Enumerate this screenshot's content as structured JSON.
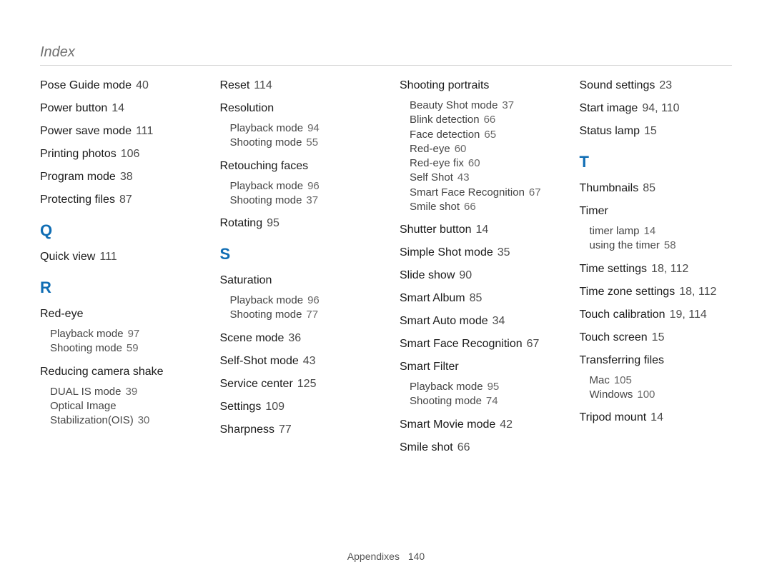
{
  "header": {
    "title": "Index"
  },
  "footer": {
    "section": "Appendixes",
    "page": "140"
  },
  "colors": {
    "accent": "#0f6db4",
    "text": "#221f20",
    "muted": "#707070"
  },
  "columns": [
    {
      "items": [
        {
          "type": "entry",
          "label": "Pose Guide mode",
          "pages": "40"
        },
        {
          "type": "entry",
          "label": "Power button",
          "pages": "14"
        },
        {
          "type": "entry",
          "label": "Power save mode",
          "pages": "111"
        },
        {
          "type": "entry",
          "label": "Printing photos",
          "pages": "106"
        },
        {
          "type": "entry",
          "label": "Program mode",
          "pages": "38"
        },
        {
          "type": "entry",
          "label": "Protecting files",
          "pages": "87"
        },
        {
          "type": "letter",
          "label": "Q"
        },
        {
          "type": "entry",
          "label": "Quick view",
          "pages": "111"
        },
        {
          "type": "letter",
          "label": "R"
        },
        {
          "type": "entry",
          "label": "Red-eye",
          "pages": ""
        },
        {
          "type": "sub",
          "label": "Playback mode",
          "pages": "97"
        },
        {
          "type": "sub",
          "label": "Shooting mode",
          "pages": "59",
          "last": true
        },
        {
          "type": "entry",
          "label": "Reducing camera shake",
          "pages": ""
        },
        {
          "type": "sub",
          "label": "DUAL IS mode",
          "pages": "39"
        },
        {
          "type": "sub",
          "label": "Optical Image Stabilization(OIS)",
          "pages": "30",
          "last": true
        }
      ]
    },
    {
      "items": [
        {
          "type": "entry",
          "label": "Reset",
          "pages": "114"
        },
        {
          "type": "entry",
          "label": "Resolution",
          "pages": ""
        },
        {
          "type": "sub",
          "label": "Playback mode",
          "pages": "94"
        },
        {
          "type": "sub",
          "label": "Shooting mode",
          "pages": "55",
          "last": true
        },
        {
          "type": "entry",
          "label": "Retouching faces",
          "pages": ""
        },
        {
          "type": "sub",
          "label": "Playback mode",
          "pages": "96"
        },
        {
          "type": "sub",
          "label": "Shooting mode",
          "pages": "37",
          "last": true
        },
        {
          "type": "entry",
          "label": "Rotating",
          "pages": "95"
        },
        {
          "type": "letter",
          "label": "S"
        },
        {
          "type": "entry",
          "label": "Saturation",
          "pages": ""
        },
        {
          "type": "sub",
          "label": "Playback mode",
          "pages": "96"
        },
        {
          "type": "sub",
          "label": "Shooting mode",
          "pages": "77",
          "last": true
        },
        {
          "type": "entry",
          "label": "Scene mode",
          "pages": "36"
        },
        {
          "type": "entry",
          "label": "Self-Shot mode",
          "pages": "43"
        },
        {
          "type": "entry",
          "label": "Service center",
          "pages": "125"
        },
        {
          "type": "entry",
          "label": "Settings",
          "pages": "109"
        },
        {
          "type": "entry",
          "label": "Sharpness",
          "pages": "77"
        }
      ]
    },
    {
      "items": [
        {
          "type": "entry",
          "label": "Shooting portraits",
          "pages": ""
        },
        {
          "type": "sub",
          "label": "Beauty Shot mode",
          "pages": "37"
        },
        {
          "type": "sub",
          "label": "Blink detection",
          "pages": "66"
        },
        {
          "type": "sub",
          "label": "Face detection",
          "pages": "65"
        },
        {
          "type": "sub",
          "label": "Red-eye",
          "pages": "60"
        },
        {
          "type": "sub",
          "label": "Red-eye fix",
          "pages": "60"
        },
        {
          "type": "sub",
          "label": "Self Shot",
          "pages": "43"
        },
        {
          "type": "sub",
          "label": "Smart Face Recognition",
          "pages": "67"
        },
        {
          "type": "sub",
          "label": "Smile shot",
          "pages": "66",
          "last": true
        },
        {
          "type": "entry",
          "label": "Shutter button",
          "pages": "14"
        },
        {
          "type": "entry",
          "label": "Simple Shot mode",
          "pages": "35"
        },
        {
          "type": "entry",
          "label": "Slide show",
          "pages": "90"
        },
        {
          "type": "entry",
          "label": "Smart Album",
          "pages": "85"
        },
        {
          "type": "entry",
          "label": "Smart Auto mode",
          "pages": "34"
        },
        {
          "type": "entry",
          "label": "Smart Face Recognition",
          "pages": "67"
        },
        {
          "type": "entry",
          "label": "Smart Filter",
          "pages": ""
        },
        {
          "type": "sub",
          "label": "Playback mode",
          "pages": "95"
        },
        {
          "type": "sub",
          "label": "Shooting mode",
          "pages": "74",
          "last": true
        },
        {
          "type": "entry",
          "label": "Smart Movie mode",
          "pages": "42"
        },
        {
          "type": "entry",
          "label": "Smile shot",
          "pages": "66"
        }
      ]
    },
    {
      "items": [
        {
          "type": "entry",
          "label": "Sound settings",
          "pages": "23"
        },
        {
          "type": "entry",
          "label": "Start image",
          "pages": "94, 110"
        },
        {
          "type": "entry",
          "label": "Status lamp",
          "pages": "15"
        },
        {
          "type": "letter",
          "label": "T"
        },
        {
          "type": "entry",
          "label": "Thumbnails",
          "pages": "85"
        },
        {
          "type": "entry",
          "label": "Timer",
          "pages": ""
        },
        {
          "type": "sub",
          "label": "timer lamp",
          "pages": "14"
        },
        {
          "type": "sub",
          "label": "using the timer",
          "pages": "58",
          "last": true
        },
        {
          "type": "entry",
          "label": "Time settings",
          "pages": "18, 112"
        },
        {
          "type": "entry",
          "label": "Time zone settings",
          "pages": "18, 112"
        },
        {
          "type": "entry",
          "label": "Touch calibration",
          "pages": "19, 114"
        },
        {
          "type": "entry",
          "label": "Touch screen",
          "pages": "15"
        },
        {
          "type": "entry",
          "label": "Transferring files",
          "pages": ""
        },
        {
          "type": "sub",
          "label": "Mac",
          "pages": "105"
        },
        {
          "type": "sub",
          "label": "Windows",
          "pages": "100",
          "last": true
        },
        {
          "type": "entry",
          "label": "Tripod mount",
          "pages": "14"
        }
      ]
    }
  ]
}
